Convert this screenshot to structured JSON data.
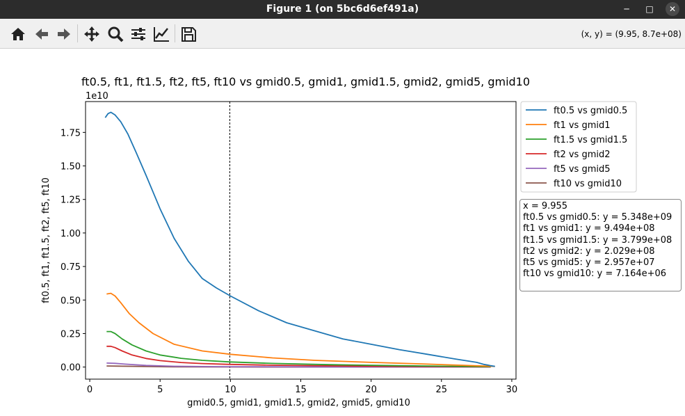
{
  "window": {
    "title": "Figure 1 (on 5bc6d6ef491a)",
    "minimize_glyph": "─",
    "maximize_glyph": "□",
    "close_glyph": "✕"
  },
  "toolbar": {
    "buttons": [
      "home-icon",
      "back-icon",
      "forward-icon",
      "pan-icon",
      "zoom-icon",
      "configure-subplots-icon",
      "edit-axis-icon",
      "save-icon"
    ],
    "coords": "(x, y) = (9.95, 8.7e+08)"
  },
  "info": {
    "lines": [
      "x = 9.955",
      "ft0.5 vs gmid0.5: y = 5.348e+09",
      "ft1 vs gmid1: y = 9.494e+08",
      "ft1.5 vs gmid1.5: y = 3.799e+08",
      "ft2 vs gmid2: y = 2.029e+08",
      "ft5 vs gmid5: y = 2.957e+07",
      "ft10 vs gmid10: y = 7.164e+06"
    ]
  },
  "chart_data": {
    "type": "line",
    "title": "ft0.5, ft1, ft1.5, ft2, ft5, ft10 vs gmid0.5, gmid1, gmid1.5, gmid2, gmid5, gmid10",
    "xlabel": "gmid0.5, gmid1, gmid1.5, gmid2, gmid5, gmid10",
    "ylabel": "ft0.5, ft1, ft1.5, ft2, ft5, ft10",
    "y_offset_label": "1e10",
    "xlim": [
      -0.3,
      30.3
    ],
    "ylim": [
      -0.09,
      1.98
    ],
    "y_scale": 10000000000.0,
    "xticks": [
      0,
      5,
      10,
      15,
      20,
      25,
      30
    ],
    "xtick_labels": [
      "0",
      "5",
      "10",
      "15",
      "20",
      "25",
      "30"
    ],
    "yticks": [
      0.0,
      0.25,
      0.5,
      0.75,
      1.0,
      1.25,
      1.5,
      1.75
    ],
    "ytick_labels": [
      "0.00",
      "0.25",
      "0.50",
      "0.75",
      "1.00",
      "1.25",
      "1.50",
      "1.75"
    ],
    "grid": false,
    "legend_position": "outside-right-top",
    "cursor_line_x": 9.955,
    "series": [
      {
        "name": "ft0.5 vs gmid0.5",
        "color": "#1f77b4",
        "x": [
          1.1,
          1.3,
          1.5,
          1.8,
          2.2,
          2.7,
          3.3,
          4.0,
          5.0,
          6.0,
          7.0,
          8.0,
          9.0,
          10.0,
          12.0,
          14.0,
          16.0,
          18.0,
          20.0,
          22.0,
          24.0,
          26.0,
          27.5,
          28.0,
          28.3,
          28.5,
          28.8
        ],
        "y": [
          1.86,
          1.89,
          1.9,
          1.88,
          1.83,
          1.74,
          1.6,
          1.43,
          1.18,
          0.96,
          0.79,
          0.66,
          0.59,
          0.53,
          0.42,
          0.33,
          0.27,
          0.21,
          0.17,
          0.13,
          0.095,
          0.06,
          0.035,
          0.02,
          0.015,
          0.01,
          0.005
        ]
      },
      {
        "name": "ft1 vs gmid1",
        "color": "#ff7f0e",
        "x": [
          1.2,
          1.5,
          1.8,
          2.2,
          2.8,
          3.5,
          4.5,
          6.0,
          8.0,
          10.0,
          13.0,
          16.0,
          20.0,
          24.0,
          28.8
        ],
        "y": [
          0.545,
          0.55,
          0.53,
          0.48,
          0.4,
          0.33,
          0.25,
          0.17,
          0.12,
          0.095,
          0.068,
          0.05,
          0.035,
          0.022,
          0.005
        ]
      },
      {
        "name": "ft1.5 vs gmid1.5",
        "color": "#2ca02c",
        "x": [
          1.2,
          1.5,
          1.8,
          2.3,
          3.0,
          4.0,
          5.0,
          6.5,
          8.0,
          10.0,
          13.0,
          17.0,
          22.0,
          28.5
        ],
        "y": [
          0.265,
          0.265,
          0.25,
          0.21,
          0.165,
          0.12,
          0.09,
          0.065,
          0.05,
          0.038,
          0.027,
          0.018,
          0.01,
          0.003
        ]
      },
      {
        "name": "ft2 vs gmid2",
        "color": "#d62728",
        "x": [
          1.2,
          1.5,
          1.8,
          2.3,
          3.0,
          4.0,
          5.0,
          6.5,
          8.0,
          10.0,
          13.0,
          17.0,
          22.0,
          28.5
        ],
        "y": [
          0.155,
          0.155,
          0.145,
          0.12,
          0.09,
          0.064,
          0.048,
          0.034,
          0.026,
          0.02,
          0.014,
          0.009,
          0.005,
          0.002
        ]
      },
      {
        "name": "ft5 vs gmid5",
        "color": "#9467bd",
        "x": [
          1.2,
          1.8,
          2.5,
          4.0,
          6.0,
          8.0,
          10.0,
          15.0,
          20.0,
          28.5
        ],
        "y": [
          0.03,
          0.028,
          0.022,
          0.012,
          0.006,
          0.004,
          0.003,
          0.002,
          0.001,
          0.0005
        ]
      },
      {
        "name": "ft10 vs gmid10",
        "color": "#8c564b",
        "x": [
          1.2,
          2.0,
          4.0,
          6.0,
          10.0,
          15.0,
          20.0,
          28.5
        ],
        "y": [
          0.008,
          0.007,
          0.004,
          0.002,
          0.0007,
          0.0004,
          0.0002,
          0.0001
        ]
      }
    ]
  }
}
